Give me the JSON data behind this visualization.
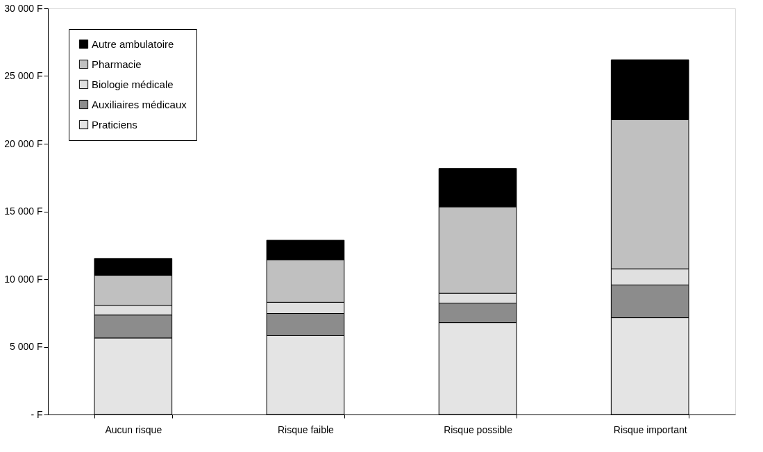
{
  "chart_data": {
    "type": "bar",
    "stacked": true,
    "categories": [
      "Aucun risque",
      "Risque faible",
      "Risque possible",
      "Risque important"
    ],
    "series": [
      {
        "name": "Praticiens",
        "color": "#e4e4e4",
        "values": [
          5650,
          5820,
          6790,
          7150
        ]
      },
      {
        "name": "Auxiliaires médicaux",
        "color": "#8c8c8c",
        "values": [
          1700,
          1640,
          1440,
          2420
        ]
      },
      {
        "name": "Biologie médicale",
        "color": "#e0e0e0",
        "values": [
          720,
          830,
          730,
          1190
        ]
      },
      {
        "name": "Pharmacie",
        "color": "#c0c0c0",
        "values": [
          2210,
          3140,
          6380,
          11010
        ]
      },
      {
        "name": "Autre ambulatoire",
        "color": "#000000",
        "values": [
          1240,
          1440,
          2830,
          4430
        ]
      }
    ],
    "ylim": [
      0,
      30000
    ],
    "yticks": [
      {
        "value": 0,
        "label": "-    F"
      },
      {
        "value": 5000,
        "label": "5 000 F"
      },
      {
        "value": 10000,
        "label": "10 000 F"
      },
      {
        "value": 15000,
        "label": "15 000 F"
      },
      {
        "value": 20000,
        "label": "20 000 F"
      },
      {
        "value": 25000,
        "label": "25 000 F"
      },
      {
        "value": 30000,
        "label": "30 000 F"
      }
    ],
    "grid": false,
    "legend": "top left"
  }
}
